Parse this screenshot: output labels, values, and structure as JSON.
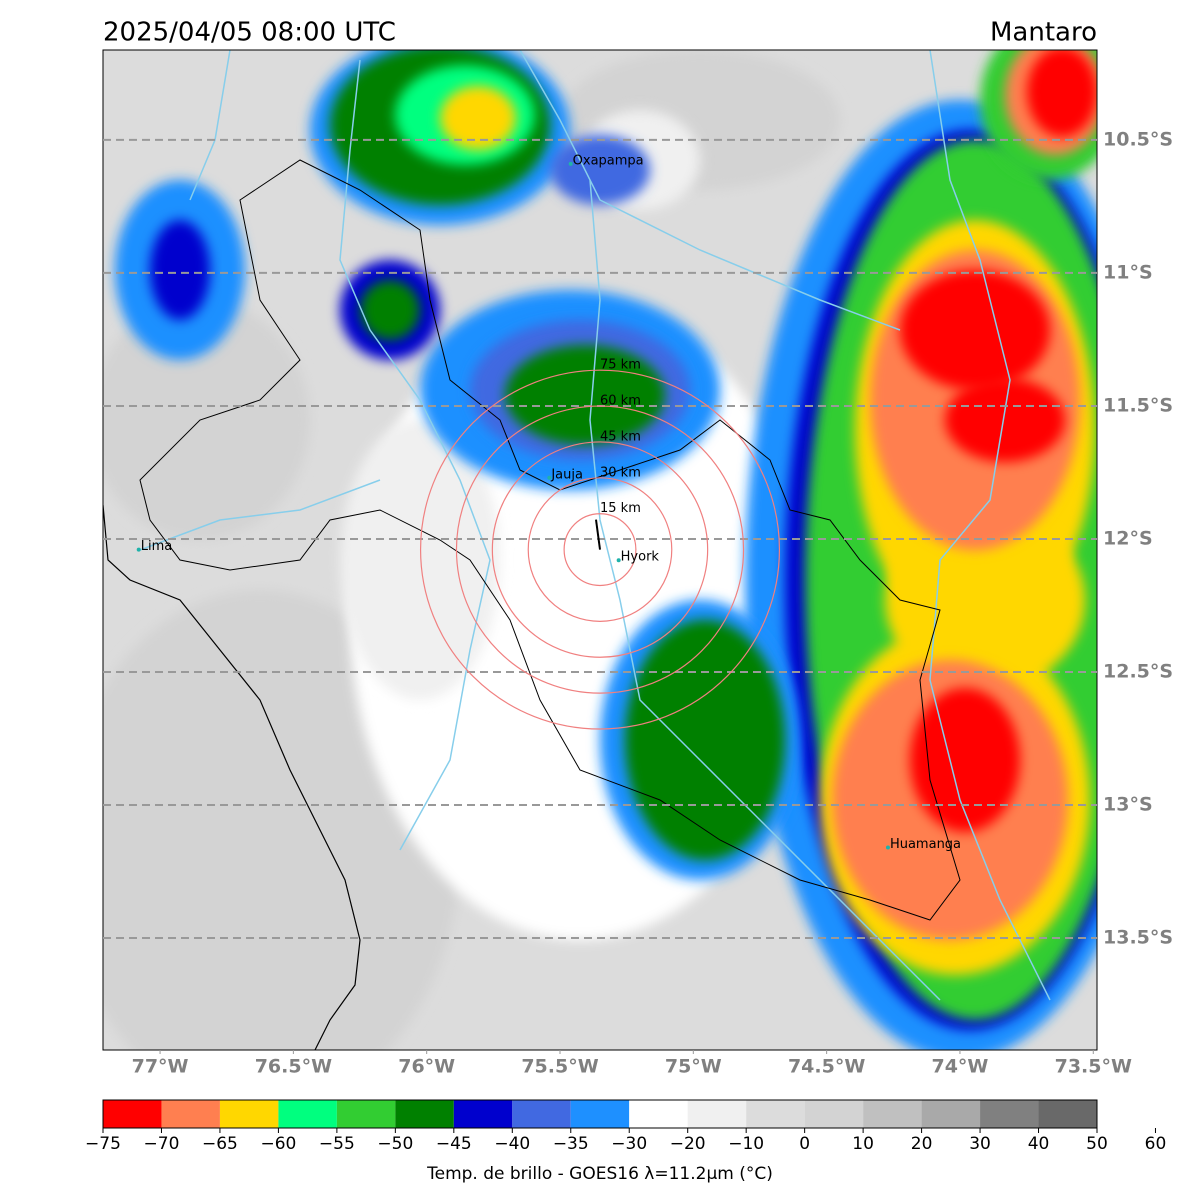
{
  "header": {
    "title": "2025/04/05 08:00 UTC",
    "region": "Mantaro"
  },
  "map": {
    "lonlim": [
      -77.214,
      -73.486
    ],
    "latlim": [
      -13.921,
      -10.162
    ],
    "xticks": [
      {
        "value": -77,
        "label": "77°W"
      },
      {
        "value": -76.5,
        "label": "76.5°W"
      },
      {
        "value": -76,
        "label": "76°W"
      },
      {
        "value": -75.5,
        "label": "75.5°W"
      },
      {
        "value": -75,
        "label": "75°W"
      },
      {
        "value": -74.5,
        "label": "74.5°W"
      },
      {
        "value": -74,
        "label": "74°W"
      },
      {
        "value": -73.5,
        "label": "73.5°W"
      }
    ],
    "yticks": [
      {
        "value": -10.5,
        "label": "10.5°S"
      },
      {
        "value": -11,
        "label": "11°S"
      },
      {
        "value": -11.5,
        "label": "11.5°S"
      },
      {
        "value": -12,
        "label": "12°S"
      },
      {
        "value": -12.5,
        "label": "12.5°S"
      },
      {
        "value": -13,
        "label": "13°S"
      },
      {
        "value": -13.5,
        "label": "13.5°S"
      }
    ],
    "cities": [
      {
        "name": "Oxapampa",
        "lon": -75.46,
        "lat": -10.59
      },
      {
        "name": "Jauja",
        "lon": -75.54,
        "lat": -11.77
      },
      {
        "name": "Lima",
        "lon": -77.08,
        "lat": -12.04
      },
      {
        "name": "Hyork",
        "lon": -75.28,
        "lat": -12.08
      },
      {
        "name": "Huamanga",
        "lon": -74.27,
        "lat": -13.16
      }
    ],
    "rings": {
      "center": {
        "lon": -75.35,
        "lat": -12.04
      },
      "radii": [
        {
          "value": 15,
          "label": "15 km"
        },
        {
          "value": 30,
          "label": "30 km"
        },
        {
          "value": 45,
          "label": "45 km"
        },
        {
          "value": 60,
          "label": "60 km"
        },
        {
          "value": 75,
          "label": "75 km"
        }
      ]
    }
  },
  "colorbar": {
    "label": "Temp. de brillo - GOES16 λ=11.2μm (°C)",
    "bounds": [
      {
        "value": -75,
        "label": "−75"
      },
      {
        "value": -70,
        "label": "−70"
      },
      {
        "value": -65,
        "label": "−65"
      },
      {
        "value": -60,
        "label": "−60"
      },
      {
        "value": -55,
        "label": "−55"
      },
      {
        "value": -50,
        "label": "−50"
      },
      {
        "value": -45,
        "label": "−45"
      },
      {
        "value": -40,
        "label": "−40"
      },
      {
        "value": -35,
        "label": "−35"
      },
      {
        "value": -30,
        "label": "−30"
      },
      {
        "value": -20,
        "label": "−20"
      },
      {
        "value": -10,
        "label": "−10"
      },
      0,
      10,
      20,
      30,
      40,
      50,
      60
    ],
    "colors": [
      "#ff0000",
      "#ff7f50",
      "#ffd700",
      "#00ff7f",
      "#32cd32",
      "#008000",
      "#0000cd",
      "#4169e1",
      "#1e90ff",
      "#ffffff",
      "#f0f0f0",
      "#dcdcdc",
      "#d3d3d3",
      "#c0c0c0",
      "#a9a9a9",
      "#808080",
      "#696969",
      "#000000"
    ]
  }
}
